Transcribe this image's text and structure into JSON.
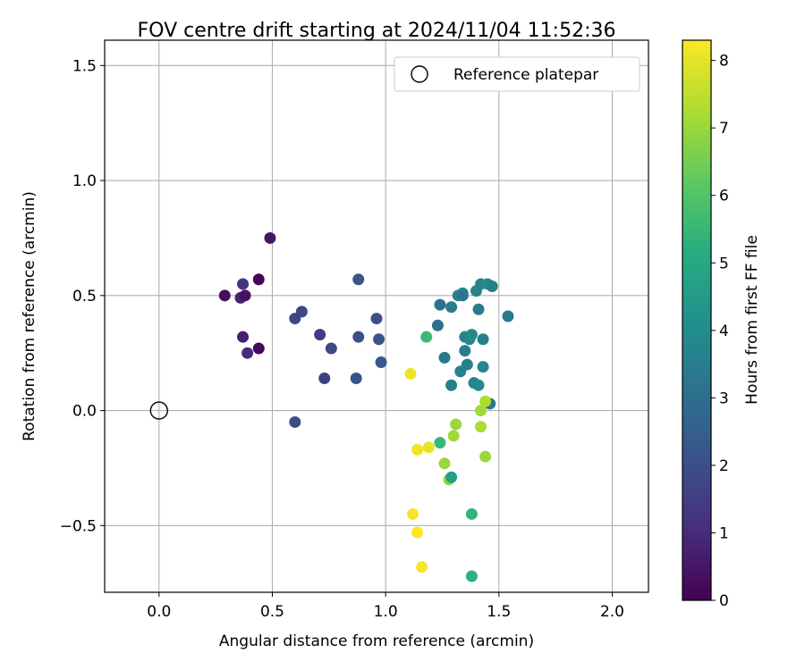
{
  "chart_data": {
    "type": "scatter",
    "title": "FOV centre drift starting at 2024/11/04 11:52:36",
    "xlabel": "Angular distance from reference (arcmin)",
    "ylabel": "Rotation from reference (arcmin)",
    "xlim": [
      -0.24,
      2.16
    ],
    "ylim": [
      -0.79,
      1.61
    ],
    "xticks": [
      0.0,
      0.5,
      1.0,
      1.5,
      2.0
    ],
    "xtick_labels": [
      "0.0",
      "0.5",
      "1.0",
      "1.5",
      "2.0"
    ],
    "yticks": [
      -0.5,
      0.0,
      0.5,
      1.0,
      1.5
    ],
    "ytick_labels": [
      "−0.5",
      "0.0",
      "0.5",
      "1.0",
      "1.5"
    ],
    "grid": true,
    "legend": {
      "location": "top-right",
      "entries": [
        "Reference platepar"
      ]
    },
    "reference_point": {
      "x": 0.0,
      "y": 0.0,
      "marker": "open-circle"
    },
    "colorbar": {
      "label": "Hours from first FF file",
      "colormap": "viridis",
      "range": [
        0,
        8.3
      ],
      "ticks": [
        0,
        1,
        2,
        3,
        4,
        5,
        6,
        7,
        8
      ],
      "tick_labels": [
        "0",
        "1",
        "2",
        "3",
        "4",
        "5",
        "6",
        "7",
        "8"
      ]
    },
    "points": [
      {
        "x": 0.49,
        "y": 0.75,
        "c": 0.5
      },
      {
        "x": 0.29,
        "y": 0.5,
        "c": 0.3
      },
      {
        "x": 0.36,
        "y": 0.49,
        "c": 0.8
      },
      {
        "x": 0.38,
        "y": 0.5,
        "c": 0.4
      },
      {
        "x": 0.37,
        "y": 0.55,
        "c": 1.2
      },
      {
        "x": 0.44,
        "y": 0.57,
        "c": 0.1
      },
      {
        "x": 0.37,
        "y": 0.32,
        "c": 0.7
      },
      {
        "x": 0.39,
        "y": 0.25,
        "c": 1.0
      },
      {
        "x": 0.44,
        "y": 0.27,
        "c": 0.2
      },
      {
        "x": 0.6,
        "y": 0.4,
        "c": 1.7
      },
      {
        "x": 0.63,
        "y": 0.43,
        "c": 1.8
      },
      {
        "x": 0.6,
        "y": -0.05,
        "c": 1.9
      },
      {
        "x": 0.71,
        "y": 0.33,
        "c": 1.5
      },
      {
        "x": 0.73,
        "y": 0.14,
        "c": 1.6
      },
      {
        "x": 0.76,
        "y": 0.27,
        "c": 1.8
      },
      {
        "x": 0.87,
        "y": 0.14,
        "c": 2.1
      },
      {
        "x": 0.88,
        "y": 0.32,
        "c": 2.0
      },
      {
        "x": 0.88,
        "y": 0.57,
        "c": 2.2
      },
      {
        "x": 0.96,
        "y": 0.4,
        "c": 2.0
      },
      {
        "x": 0.97,
        "y": 0.31,
        "c": 2.1
      },
      {
        "x": 0.98,
        "y": 0.21,
        "c": 2.3
      },
      {
        "x": 1.11,
        "y": 0.16,
        "c": 8.1
      },
      {
        "x": 1.18,
        "y": 0.32,
        "c": 5.6
      },
      {
        "x": 1.23,
        "y": 0.37,
        "c": 3.0
      },
      {
        "x": 1.24,
        "y": 0.46,
        "c": 3.1
      },
      {
        "x": 1.26,
        "y": 0.23,
        "c": 3.3
      },
      {
        "x": 1.29,
        "y": 0.45,
        "c": 3.4
      },
      {
        "x": 1.29,
        "y": 0.11,
        "c": 3.5
      },
      {
        "x": 1.32,
        "y": 0.5,
        "c": 3.6
      },
      {
        "x": 1.33,
        "y": 0.17,
        "c": 3.6
      },
      {
        "x": 1.34,
        "y": 0.51,
        "c": 3.8
      },
      {
        "x": 1.34,
        "y": 0.5,
        "c": 3.2
      },
      {
        "x": 1.35,
        "y": 0.32,
        "c": 3.7
      },
      {
        "x": 1.35,
        "y": 0.26,
        "c": 3.5
      },
      {
        "x": 1.36,
        "y": 0.2,
        "c": 3.6
      },
      {
        "x": 1.37,
        "y": 0.31,
        "c": 3.8
      },
      {
        "x": 1.38,
        "y": 0.33,
        "c": 3.9
      },
      {
        "x": 1.39,
        "y": 0.12,
        "c": 3.7
      },
      {
        "x": 1.4,
        "y": 0.52,
        "c": 3.8
      },
      {
        "x": 1.41,
        "y": 0.44,
        "c": 3.4
      },
      {
        "x": 1.41,
        "y": 0.11,
        "c": 3.9
      },
      {
        "x": 1.42,
        "y": 0.55,
        "c": 3.6
      },
      {
        "x": 1.43,
        "y": 0.31,
        "c": 3.5
      },
      {
        "x": 1.43,
        "y": 0.19,
        "c": 3.8
      },
      {
        "x": 1.45,
        "y": 0.55,
        "c": 3.9
      },
      {
        "x": 1.46,
        "y": 0.03,
        "c": 3.3
      },
      {
        "x": 1.47,
        "y": 0.54,
        "c": 3.5
      },
      {
        "x": 1.54,
        "y": 0.41,
        "c": 3.3
      },
      {
        "x": 1.12,
        "y": -0.45,
        "c": 8.2
      },
      {
        "x": 1.14,
        "y": -0.17,
        "c": 8.1
      },
      {
        "x": 1.14,
        "y": -0.53,
        "c": 8.3
      },
      {
        "x": 1.16,
        "y": -0.68,
        "c": 8.2
      },
      {
        "x": 1.19,
        "y": -0.16,
        "c": 8.0
      },
      {
        "x": 1.24,
        "y": -0.14,
        "c": 5.5
      },
      {
        "x": 1.26,
        "y": -0.23,
        "c": 7.0
      },
      {
        "x": 1.28,
        "y": -0.3,
        "c": 6.9
      },
      {
        "x": 1.29,
        "y": -0.29,
        "c": 4.6
      },
      {
        "x": 1.3,
        "y": -0.11,
        "c": 7.1
      },
      {
        "x": 1.31,
        "y": -0.06,
        "c": 7.0
      },
      {
        "x": 1.38,
        "y": -0.45,
        "c": 5.4
      },
      {
        "x": 1.38,
        "y": -0.72,
        "c": 5.3
      },
      {
        "x": 1.42,
        "y": -0.0,
        "c": 7.1
      },
      {
        "x": 1.42,
        "y": -0.07,
        "c": 7.2
      },
      {
        "x": 1.44,
        "y": 0.04,
        "c": 7.3
      },
      {
        "x": 1.44,
        "y": -0.2,
        "c": 7.0
      }
    ]
  }
}
